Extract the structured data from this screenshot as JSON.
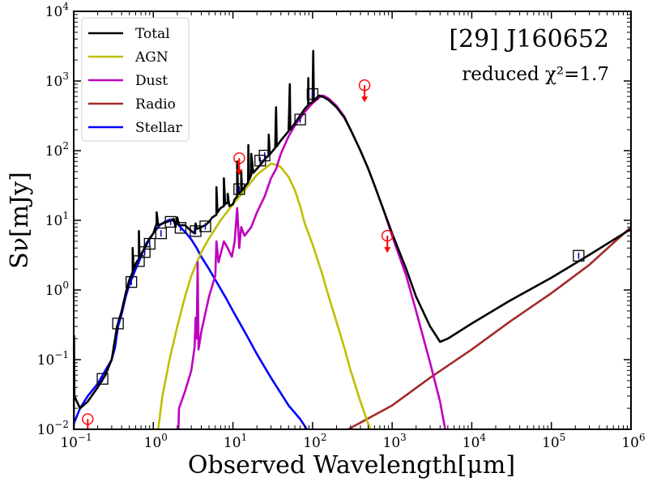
{
  "chart_data": {
    "type": "line",
    "title": "[29] J160652",
    "subtitle": "reduced χ²=1.7",
    "xlabel": "Observed Wavelength[μm]",
    "ylabel": "Sν[mJy]",
    "xscale": "log",
    "yscale": "log",
    "xlim": [
      0.1,
      1000000
    ],
    "ylim": [
      0.01,
      10000
    ],
    "x_ticks": [
      {
        "value": 0.1,
        "base": "10",
        "exp": "−1"
      },
      {
        "value": 1,
        "base": "10",
        "exp": "0"
      },
      {
        "value": 10,
        "base": "10",
        "exp": "1"
      },
      {
        "value": 100,
        "base": "10",
        "exp": "2"
      },
      {
        "value": 1000,
        "base": "10",
        "exp": "3"
      },
      {
        "value": 10000,
        "base": "10",
        "exp": "4"
      },
      {
        "value": 100000,
        "base": "10",
        "exp": "5"
      },
      {
        "value": 1000000,
        "base": "10",
        "exp": "6"
      }
    ],
    "y_ticks": [
      {
        "value": 0.01,
        "base": "10",
        "exp": "−2"
      },
      {
        "value": 0.1,
        "base": "10",
        "exp": "−1"
      },
      {
        "value": 1,
        "base": "10",
        "exp": "0"
      },
      {
        "value": 10,
        "base": "10",
        "exp": "1"
      },
      {
        "value": 100,
        "base": "10",
        "exp": "2"
      },
      {
        "value": 1000,
        "base": "10",
        "exp": "3"
      },
      {
        "value": 10000,
        "base": "10",
        "exp": "4"
      }
    ],
    "legend_position": "top-left",
    "series": [
      {
        "name": "Total",
        "color": "#000000",
        "points": [
          [
            0.1,
            0.008
          ],
          [
            0.101,
            0.22
          ],
          [
            0.102,
            0.03
          ],
          [
            0.12,
            0.02
          ],
          [
            0.15,
            0.025
          ],
          [
            0.2,
            0.04
          ],
          [
            0.25,
            0.06
          ],
          [
            0.3,
            0.1
          ],
          [
            0.35,
            0.3
          ],
          [
            0.4,
            0.5
          ],
          [
            0.45,
            0.9
          ],
          [
            0.5,
            1.4
          ],
          [
            0.55,
            1.8
          ],
          [
            0.55,
            4.0
          ],
          [
            0.56,
            1.9
          ],
          [
            0.6,
            2.4
          ],
          [
            0.66,
            2.8
          ],
          [
            0.66,
            7.0
          ],
          [
            0.67,
            3.0
          ],
          [
            0.8,
            4.2
          ],
          [
            0.9,
            5.5
          ],
          [
            1.0,
            6.5
          ],
          [
            1.1,
            9.0
          ],
          [
            1.1,
            13.0
          ],
          [
            1.15,
            8.5
          ],
          [
            1.3,
            9.0
          ],
          [
            1.5,
            9.5
          ],
          [
            1.8,
            10.5
          ],
          [
            1.9,
            8.0
          ],
          [
            2.0,
            11.0
          ],
          [
            2.1,
            8.5
          ],
          [
            2.5,
            8.5
          ],
          [
            3.0,
            7.0
          ],
          [
            3.3,
            6.5
          ],
          [
            3.4,
            9.0
          ],
          [
            3.5,
            7.5
          ],
          [
            4.0,
            8.0
          ],
          [
            4.5,
            8.5
          ],
          [
            5.0,
            9.5
          ],
          [
            5.5,
            11.0
          ],
          [
            6.2,
            12.0
          ],
          [
            6.2,
            30.0
          ],
          [
            6.4,
            13.0
          ],
          [
            7.0,
            15.0
          ],
          [
            7.7,
            16.0
          ],
          [
            7.7,
            40.0
          ],
          [
            8.0,
            17.0
          ],
          [
            8.6,
            18.0
          ],
          [
            8.6,
            24.0
          ],
          [
            9.0,
            16.0
          ],
          [
            10.0,
            17.0
          ],
          [
            10.5,
            20.0
          ],
          [
            11.3,
            22.0
          ],
          [
            11.3,
            70.0
          ],
          [
            11.6,
            24.0
          ],
          [
            12.7,
            26.0
          ],
          [
            12.7,
            50.0
          ],
          [
            13.0,
            27.0
          ],
          [
            14.0,
            30.0
          ],
          [
            15.5,
            35.0
          ],
          [
            15.6,
            120.0
          ],
          [
            16.0,
            38.0
          ],
          [
            17.0,
            45.0
          ],
          [
            17.0,
            90.0
          ],
          [
            18.0,
            48.0
          ],
          [
            20.0,
            55.0
          ],
          [
            22.0,
            62.0
          ],
          [
            25.0,
            75.0
          ],
          [
            28.0,
            85.0
          ],
          [
            28.2,
            170.0
          ],
          [
            29.0,
            88.0
          ],
          [
            34.0,
            110.0
          ],
          [
            34.8,
            420.0
          ],
          [
            35.5,
            115.0
          ],
          [
            40.0,
            140.0
          ],
          [
            50.0,
            190.0
          ],
          [
            51.8,
            900.0
          ],
          [
            52.5,
            200.0
          ],
          [
            60.0,
            250.0
          ],
          [
            70.0,
            320.0
          ],
          [
            80.0,
            400.0
          ],
          [
            88.0,
            450.0
          ],
          [
            88.4,
            1100.0
          ],
          [
            89.0,
            460.0
          ],
          [
            100.0,
            500.0
          ],
          [
            102.0,
            2700.0
          ],
          [
            104.0,
            520.0
          ],
          [
            120.0,
            620.0
          ],
          [
            140.0,
            580.0
          ],
          [
            160.0,
            530.0
          ],
          [
            200.0,
            420.0
          ],
          [
            250.0,
            300.0
          ],
          [
            300.0,
            200.0
          ],
          [
            400.0,
            100.0
          ],
          [
            500.0,
            55.0
          ],
          [
            600.0,
            32.0
          ],
          [
            800.0,
            13.0
          ],
          [
            1000.0,
            6.5
          ],
          [
            1500.0,
            2.0
          ],
          [
            2000.0,
            0.8
          ],
          [
            3000.0,
            0.3
          ],
          [
            4000.0,
            0.18
          ],
          [
            5000.0,
            0.2
          ],
          [
            10000.0,
            0.33
          ],
          [
            30000.0,
            0.7
          ],
          [
            100000.0,
            1.5
          ],
          [
            300000.0,
            3.2
          ],
          [
            1000000.0,
            7.5
          ]
        ]
      },
      {
        "name": "AGN",
        "color": "#bfbf00",
        "points": [
          [
            1.15,
            0.01
          ],
          [
            1.3,
            0.03
          ],
          [
            1.6,
            0.1
          ],
          [
            2.0,
            0.3
          ],
          [
            2.5,
            0.8
          ],
          [
            3.0,
            1.6
          ],
          [
            4.0,
            3.5
          ],
          [
            5.0,
            5.5
          ],
          [
            7.0,
            10.0
          ],
          [
            10.0,
            17.0
          ],
          [
            15.0,
            30.0
          ],
          [
            20.0,
            45.0
          ],
          [
            30.0,
            65.0
          ],
          [
            35.0,
            63.0
          ],
          [
            40.0,
            58.0
          ],
          [
            50.0,
            42.0
          ],
          [
            60.0,
            27.0
          ],
          [
            70.0,
            16.0
          ],
          [
            80.0,
            9.0
          ],
          [
            100.0,
            4.5
          ],
          [
            130.0,
            1.8
          ],
          [
            160.0,
            0.8
          ],
          [
            200.0,
            0.35
          ],
          [
            250.0,
            0.15
          ],
          [
            300.0,
            0.07
          ],
          [
            400.0,
            0.025
          ],
          [
            500.0,
            0.012
          ],
          [
            550.0,
            0.009
          ]
        ]
      },
      {
        "name": "Dust",
        "color": "#bf00bf",
        "points": [
          [
            2.05,
            0.007
          ],
          [
            2.1,
            0.02
          ],
          [
            2.5,
            0.035
          ],
          [
            3.0,
            0.07
          ],
          [
            3.3,
            0.15
          ],
          [
            3.4,
            0.4
          ],
          [
            3.5,
            0.2
          ],
          [
            3.6,
            2.5
          ],
          [
            3.7,
            0.14
          ],
          [
            4.0,
            0.25
          ],
          [
            5.0,
            0.8
          ],
          [
            6.0,
            1.6
          ],
          [
            6.2,
            5.0
          ],
          [
            6.6,
            2.5
          ],
          [
            7.7,
            5.0
          ],
          [
            8.6,
            4.0
          ],
          [
            9.7,
            3.0
          ],
          [
            10.5,
            5.0
          ],
          [
            11.3,
            15.0
          ],
          [
            12.0,
            4.0
          ],
          [
            12.7,
            8.0
          ],
          [
            14.0,
            6.0
          ],
          [
            17.0,
            8.0
          ],
          [
            20.0,
            13.0
          ],
          [
            25.0,
            22.0
          ],
          [
            30.0,
            40.0
          ],
          [
            35.0,
            55.0
          ],
          [
            40.0,
            90.0
          ],
          [
            50.0,
            160.0
          ],
          [
            60.0,
            230.0
          ],
          [
            80.0,
            360.0
          ],
          [
            100.0,
            480.0
          ],
          [
            130.0,
            620.0
          ],
          [
            140.0,
            610.0
          ],
          [
            160.0,
            560.0
          ],
          [
            200.0,
            440.0
          ],
          [
            250.0,
            310.0
          ],
          [
            300.0,
            200.0
          ],
          [
            400.0,
            100.0
          ],
          [
            500.0,
            55.0
          ],
          [
            600.0,
            32.0
          ],
          [
            800.0,
            13.0
          ],
          [
            1000.0,
            6.0
          ],
          [
            1500.0,
            1.6
          ],
          [
            2000.0,
            0.5
          ],
          [
            3000.0,
            0.09
          ],
          [
            4000.0,
            0.025
          ],
          [
            4800.0,
            0.008
          ]
        ]
      },
      {
        "name": "Radio",
        "color": "#a52a2a",
        "points": [
          [
            280.0,
            0.01
          ],
          [
            1000.0,
            0.022
          ],
          [
            3000.0,
            0.055
          ],
          [
            10000.0,
            0.14
          ],
          [
            30000.0,
            0.35
          ],
          [
            100000.0,
            0.9
          ],
          [
            300000.0,
            2.3
          ],
          [
            1000000.0,
            8.0
          ]
        ]
      },
      {
        "name": "Stellar",
        "color": "#0000ff",
        "points": [
          [
            0.1,
            0.012
          ],
          [
            0.12,
            0.02
          ],
          [
            0.15,
            0.03
          ],
          [
            0.2,
            0.045
          ],
          [
            0.25,
            0.07
          ],
          [
            0.3,
            0.1
          ],
          [
            0.33,
            0.15
          ],
          [
            0.36,
            0.3
          ],
          [
            0.4,
            0.45
          ],
          [
            0.45,
            0.8
          ],
          [
            0.5,
            1.2
          ],
          [
            0.6,
            2.0
          ],
          [
            0.7,
            3.0
          ],
          [
            0.8,
            4.5
          ],
          [
            1.0,
            6.5
          ],
          [
            1.2,
            8.5
          ],
          [
            1.4,
            9.5
          ],
          [
            1.6,
            10.2
          ],
          [
            1.8,
            9.8
          ],
          [
            2.0,
            9.0
          ],
          [
            2.3,
            7.5
          ],
          [
            2.6,
            6.5
          ],
          [
            3.0,
            5.3
          ],
          [
            3.5,
            4.0
          ],
          [
            4.0,
            3.0
          ],
          [
            5.0,
            2.0
          ],
          [
            6.0,
            1.4
          ],
          [
            8.0,
            0.8
          ],
          [
            10.0,
            0.5
          ],
          [
            15.0,
            0.22
          ],
          [
            20.0,
            0.12
          ],
          [
            30.0,
            0.055
          ],
          [
            50.0,
            0.022
          ],
          [
            70.0,
            0.014
          ],
          [
            90.0,
            0.009
          ]
        ]
      }
    ],
    "detections": [
      {
        "x": 0.23,
        "y": 0.053
      },
      {
        "x": 0.36,
        "y": 0.33
      },
      {
        "x": 0.53,
        "y": 1.3
      },
      {
        "x": 0.66,
        "y": 2.6
      },
      {
        "x": 0.78,
        "y": 3.5
      },
      {
        "x": 0.9,
        "y": 4.6
      },
      {
        "x": 1.25,
        "y": 6.5
      },
      {
        "x": 1.65,
        "y": 9.5
      },
      {
        "x": 2.2,
        "y": 7.8
      },
      {
        "x": 3.4,
        "y": 7.0
      },
      {
        "x": 4.5,
        "y": 8.2
      },
      {
        "x": 12.0,
        "y": 28.0
      },
      {
        "x": 22.0,
        "y": 72.0
      },
      {
        "x": 25.0,
        "y": 85.0
      },
      {
        "x": 70.0,
        "y": 280.0
      },
      {
        "x": 100.0,
        "y": 650.0
      },
      {
        "x": 220000.0,
        "y": 3.1
      }
    ],
    "upper_limits": [
      {
        "x": 0.15,
        "y": 0.014
      },
      {
        "x": 12.0,
        "y": 78.0
      },
      {
        "x": 450.0,
        "y": 870.0
      },
      {
        "x": 870.0,
        "y": 6.0
      }
    ],
    "colors": {
      "detection_marker": "#000000",
      "upper_limit_marker": "#ff0000"
    }
  }
}
